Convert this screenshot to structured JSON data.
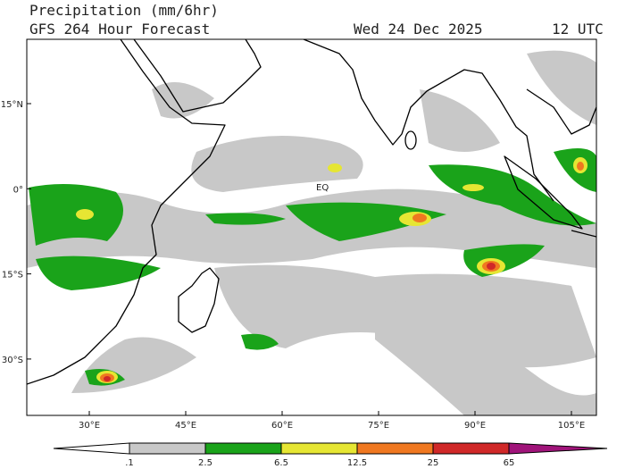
{
  "header": {
    "title": "Precipitation (mm/6hr)",
    "subtitle": "GFS 264 Hour Forecast",
    "date": "Wed 24 Dec 2025",
    "time": "12 UTC"
  },
  "map": {
    "lat_labels": [
      "15°N",
      "0°",
      "15°S",
      "30°S"
    ],
    "lon_labels": [
      "30°E",
      "45°E",
      "60°E",
      "75°E",
      "90°E",
      "105°E"
    ],
    "annotation": "EQ"
  },
  "colorbar": {
    "labels": [
      ".1",
      "2.5",
      "6.5",
      "12.5",
      "25",
      "65"
    ]
  }
}
